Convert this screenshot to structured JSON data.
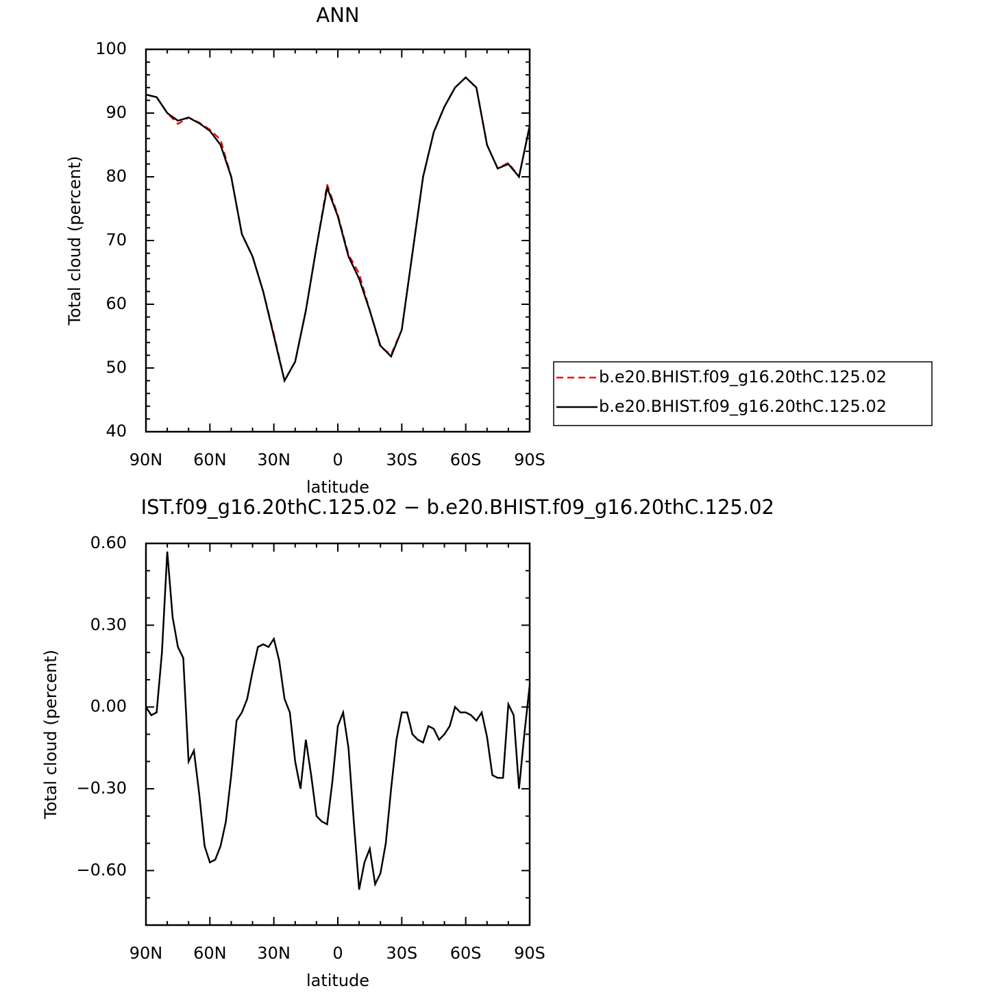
{
  "chart_data": [
    {
      "type": "line",
      "title": "ANN",
      "xlabel": "latitude",
      "ylabel": "Total cloud (percent)",
      "x": [
        90,
        85,
        80,
        75,
        70,
        65,
        60,
        55,
        50,
        45,
        40,
        35,
        30,
        25,
        20,
        15,
        10,
        5,
        0,
        -5,
        -10,
        -15,
        -20,
        -25,
        -30,
        -35,
        -40,
        -45,
        -50,
        -55,
        -60,
        -65,
        -70,
        -75,
        -80,
        -85,
        -90
      ],
      "series": [
        {
          "name": "b.e20.BHIST.f09_g16.20thC.125.02",
          "color": "#ff0000",
          "linestyle": "dashed",
          "values": [
            92.9,
            92.5,
            90.0,
            88.3,
            89.3,
            88.5,
            87.4,
            85.8,
            80.0,
            71.0,
            67.5,
            62.0,
            55.3,
            48.0,
            51.0,
            59.0,
            69.0,
            78.8,
            74.0,
            67.8,
            64.8,
            59.0,
            53.3,
            52.1,
            56.0,
            68.0,
            80.0,
            87.0,
            91.0,
            94.0,
            95.6,
            94.0,
            85.0,
            81.3,
            82.2,
            80.0,
            88.0
          ]
        },
        {
          "name": "b.e20.BHIST.f09_g16.20thC.125.02",
          "color": "#000000",
          "linestyle": "solid",
          "values": [
            92.9,
            92.5,
            90.0,
            88.8,
            89.3,
            88.4,
            87.2,
            85.0,
            80.0,
            71.0,
            67.5,
            62.0,
            55.0,
            48.0,
            51.0,
            59.0,
            69.0,
            78.3,
            73.8,
            67.5,
            64.0,
            59.0,
            53.5,
            51.8,
            56.0,
            68.0,
            80.0,
            87.0,
            91.0,
            94.0,
            95.6,
            94.0,
            85.0,
            81.3,
            82.0,
            80.0,
            88.0
          ]
        }
      ],
      "xlim": [
        90,
        -90
      ],
      "ylim": [
        40,
        100
      ],
      "xticks": [
        {
          "value": 90,
          "label": "90N"
        },
        {
          "value": 60,
          "label": "60N"
        },
        {
          "value": 30,
          "label": "30N"
        },
        0,
        {
          "value": -30,
          "label": "30S"
        },
        {
          "value": -60,
          "label": "60S"
        },
        {
          "value": -90,
          "label": "90S"
        }
      ],
      "xminorticks": [
        80,
        70,
        50,
        40,
        20,
        10,
        -10,
        -20,
        -40,
        -50,
        -70,
        -80
      ],
      "yticks": [
        40,
        50,
        60,
        70,
        80,
        90,
        100
      ],
      "yminorticks": [
        42,
        44,
        46,
        48,
        52,
        54,
        56,
        58,
        62,
        64,
        66,
        68,
        72,
        74,
        76,
        78,
        82,
        84,
        86,
        88,
        92,
        94,
        96,
        98
      ],
      "legend": "right"
    },
    {
      "type": "line",
      "title": "IST.f09_g16.20thC.125.02 − b.e20.BHIST.f09_g16.20thC.125.02",
      "xlabel": "latitude",
      "ylabel": "Total cloud (percent)",
      "x": [
        90,
        87.5,
        85,
        82.5,
        80,
        77.5,
        75,
        72.5,
        70,
        67.5,
        65,
        62.5,
        60,
        57.5,
        55,
        52.5,
        50,
        47.5,
        45,
        42.5,
        40,
        37.5,
        35,
        32.5,
        30,
        27.5,
        25,
        22.5,
        20,
        17.5,
        15,
        12.5,
        10,
        7.5,
        5,
        2.5,
        0,
        -2.5,
        -5,
        -7.5,
        -10,
        -12.5,
        -15,
        -17.5,
        -20,
        -22.5,
        -25,
        -27.5,
        -30,
        -32.5,
        -35,
        -37.5,
        -40,
        -42.5,
        -45,
        -47.5,
        -50,
        -52.5,
        -55,
        -57.5,
        -60,
        -62.5,
        -65,
        -67.5,
        -70,
        -72.5,
        -75,
        -77.5,
        -80,
        -82.5,
        -85,
        -87.5,
        -90
      ],
      "series": [
        {
          "color": "#000000",
          "linestyle": "solid",
          "values": [
            0.0,
            -0.03,
            -0.02,
            0.2,
            0.57,
            0.33,
            0.22,
            0.18,
            -0.2,
            -0.16,
            -0.32,
            -0.51,
            -0.57,
            -0.56,
            -0.51,
            -0.42,
            -0.25,
            -0.05,
            -0.02,
            0.03,
            0.13,
            0.22,
            0.23,
            0.22,
            0.25,
            0.17,
            0.03,
            -0.02,
            -0.2,
            -0.3,
            -0.12,
            -0.25,
            -0.4,
            -0.42,
            -0.43,
            -0.27,
            -0.07,
            -0.02,
            -0.15,
            -0.42,
            -0.67,
            -0.57,
            -0.52,
            -0.65,
            -0.61,
            -0.5,
            -0.3,
            -0.12,
            -0.02,
            -0.02,
            -0.1,
            -0.12,
            -0.13,
            -0.07,
            -0.08,
            -0.12,
            -0.1,
            -0.07,
            0.0,
            -0.02,
            -0.02,
            -0.03,
            -0.05,
            -0.02,
            -0.11,
            -0.25,
            -0.26,
            -0.26,
            0.01,
            -0.03,
            -0.3,
            -0.1,
            0.08
          ]
        }
      ],
      "xlim": [
        90,
        -90
      ],
      "ylim": [
        -0.8,
        0.6
      ],
      "xticks": [
        {
          "value": 90,
          "label": "90N"
        },
        {
          "value": 60,
          "label": "60N"
        },
        {
          "value": 30,
          "label": "30N"
        },
        0,
        {
          "value": -30,
          "label": "30S"
        },
        {
          "value": -60,
          "label": "60S"
        },
        {
          "value": -90,
          "label": "90S"
        }
      ],
      "xminorticks": [
        80,
        70,
        50,
        40,
        20,
        10,
        -10,
        -20,
        -40,
        -50,
        -70,
        -80
      ],
      "yticks": [
        {
          "value": -0.6,
          "label": "−0.60"
        },
        {
          "value": -0.3,
          "label": "−0.30"
        },
        {
          "value": 0,
          "label": "0.00"
        },
        {
          "value": 0.3,
          "label": "0.30"
        },
        {
          "value": 0.6,
          "label": "0.60"
        }
      ],
      "yminorticks": [
        -0.7,
        -0.5,
        -0.4,
        -0.2,
        -0.1,
        0.1,
        0.2,
        0.4,
        0.5
      ]
    }
  ]
}
